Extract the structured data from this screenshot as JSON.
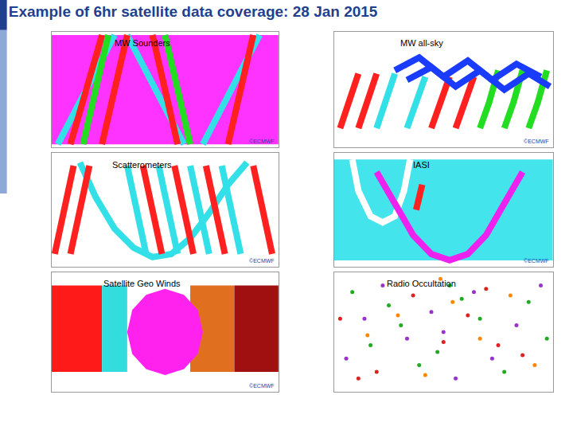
{
  "title": "Example of 6hr satellite data coverage: 28 Jan 2015",
  "chart_data": [
    {
      "type": "map",
      "title": "MW Sounders",
      "annotation": "©ECMWF",
      "xlim": [
        -180,
        180
      ],
      "ylim": [
        -90,
        90
      ],
      "tick_labels": false,
      "grid": false,
      "series": [
        {
          "type": "area",
          "color": "#ff33ff",
          "x": [
            -180,
            180,
            180,
            -180
          ],
          "values": [
            -85,
            -85,
            85,
            85
          ]
        },
        {
          "type": "line",
          "color": "#33e0e8",
          "x": [
            -170,
            -140,
            -110,
            -80
          ],
          "values": [
            -85,
            -30,
            30,
            85
          ]
        },
        {
          "type": "line",
          "color": "#33e0e8",
          "x": [
            -60,
            -30,
            0,
            30
          ],
          "values": [
            85,
            30,
            -30,
            -85
          ]
        },
        {
          "type": "line",
          "color": "#33e0e8",
          "x": [
            60,
            90,
            120,
            150
          ],
          "values": [
            -85,
            -30,
            30,
            85
          ]
        },
        {
          "type": "line",
          "color": "#ff2020",
          "x": [
            -150,
            -125,
            -100
          ],
          "values": [
            -85,
            0,
            85
          ]
        },
        {
          "type": "line",
          "color": "#ff2020",
          "x": [
            -100,
            -80,
            -60
          ],
          "values": [
            -85,
            0,
            85
          ]
        },
        {
          "type": "line",
          "color": "#ff2020",
          "x": [
            -20,
            0,
            20
          ],
          "values": [
            85,
            0,
            -85
          ]
        },
        {
          "type": "line",
          "color": "#ff2020",
          "x": [
            100,
            120,
            140
          ],
          "values": [
            -85,
            0,
            85
          ]
        },
        {
          "type": "line",
          "color": "#22dd22",
          "x": [
            -130,
            -110,
            -90
          ],
          "values": [
            -85,
            0,
            85
          ]
        },
        {
          "type": "line",
          "color": "#22dd22",
          "x": [
            0,
            20,
            40
          ],
          "values": [
            85,
            0,
            -85
          ]
        }
      ]
    },
    {
      "type": "map",
      "title": "MW all-sky",
      "annotation": "©ECMWF",
      "xlim": [
        -180,
        180
      ],
      "ylim": [
        -90,
        90
      ],
      "tick_labels": false,
      "grid": false,
      "series": [
        {
          "type": "line",
          "color": "#ff2020",
          "x": [
            -170,
            -155,
            -140
          ],
          "values": [
            -60,
            -20,
            25
          ]
        },
        {
          "type": "line",
          "color": "#ff2020",
          "x": [
            -140,
            -125,
            -110
          ],
          "values": [
            -60,
            -20,
            25
          ]
        },
        {
          "type": "line",
          "color": "#ff2020",
          "x": [
            -20,
            -5,
            10
          ],
          "values": [
            -60,
            -20,
            20
          ]
        },
        {
          "type": "line",
          "color": "#ff2020",
          "x": [
            20,
            35,
            50
          ],
          "values": [
            -60,
            -20,
            20
          ]
        },
        {
          "type": "line",
          "color": "#22dd22",
          "x": [
            60,
            75,
            90
          ],
          "values": [
            -60,
            -20,
            30
          ]
        },
        {
          "type": "line",
          "color": "#22dd22",
          "x": [
            100,
            115,
            130
          ],
          "values": [
            -60,
            -20,
            30
          ]
        },
        {
          "type": "line",
          "color": "#22dd22",
          "x": [
            140,
            155,
            170
          ],
          "values": [
            -60,
            -20,
            30
          ]
        },
        {
          "type": "line",
          "color": "#33e0e8",
          "x": [
            -110,
            -95,
            -80
          ],
          "values": [
            -60,
            -20,
            25
          ]
        },
        {
          "type": "line",
          "color": "#33e0e8",
          "x": [
            -60,
            -45,
            -30
          ],
          "values": [
            -60,
            -20,
            20
          ]
        },
        {
          "type": "line",
          "color": "#1a3cff",
          "x": [
            -80,
            -40,
            0,
            40,
            80,
            120,
            160
          ],
          "values": [
            30,
            50,
            20,
            45,
            15,
            40,
            20
          ]
        },
        {
          "type": "line",
          "color": "#1a3cff",
          "x": [
            -60,
            -20,
            20,
            60,
            100,
            140,
            175
          ],
          "values": [
            15,
            35,
            5,
            30,
            0,
            25,
            5
          ]
        }
      ]
    },
    {
      "type": "map",
      "title": "Scatterometers",
      "annotation": "©ECMWF",
      "xlim": [
        -180,
        180
      ],
      "ylim": [
        -90,
        90
      ],
      "tick_labels": false,
      "grid": false,
      "series": [
        {
          "type": "line",
          "color": "#33e0e8",
          "x": [
            -135,
            -110,
            -80,
            -50,
            -20,
            10,
            40,
            70,
            100,
            130
          ],
          "values": [
            75,
            20,
            -30,
            -60,
            -75,
            -70,
            -45,
            -5,
            40,
            75
          ]
        },
        {
          "type": "line",
          "color": "#ff2020",
          "x": [
            -175,
            -160,
            -145
          ],
          "values": [
            -70,
            0,
            70
          ]
        },
        {
          "type": "line",
          "color": "#ff2020",
          "x": [
            -150,
            -135,
            -120
          ],
          "values": [
            -70,
            0,
            70
          ]
        },
        {
          "type": "line",
          "color": "#33e0e8",
          "x": [
            -60,
            -45,
            -30
          ],
          "values": [
            70,
            0,
            -70
          ]
        },
        {
          "type": "line",
          "color": "#33e0e8",
          "x": [
            -10,
            5,
            20
          ],
          "values": [
            70,
            0,
            -70
          ]
        },
        {
          "type": "line",
          "color": "#33e0e8",
          "x": [
            40,
            55,
            70
          ],
          "values": [
            70,
            0,
            -70
          ]
        },
        {
          "type": "line",
          "color": "#33e0e8",
          "x": [
            90,
            105,
            120
          ],
          "values": [
            70,
            0,
            -70
          ]
        },
        {
          "type": "line",
          "color": "#ff2020",
          "x": [
            -35,
            -20,
            -5
          ],
          "values": [
            70,
            0,
            -70
          ]
        },
        {
          "type": "line",
          "color": "#ff2020",
          "x": [
            15,
            30,
            45
          ],
          "values": [
            70,
            0,
            -70
          ]
        },
        {
          "type": "line",
          "color": "#ff2020",
          "x": [
            65,
            80,
            95
          ],
          "values": [
            70,
            0,
            -70
          ]
        },
        {
          "type": "line",
          "color": "#ff2020",
          "x": [
            140,
            155,
            170
          ],
          "values": [
            70,
            0,
            -70
          ]
        }
      ]
    },
    {
      "type": "map",
      "title": "IASI",
      "annotation": "©ECMWF",
      "xlim": [
        -180,
        180
      ],
      "ylim": [
        -90,
        90
      ],
      "tick_labels": false,
      "grid": false,
      "series": [
        {
          "type": "area",
          "color": "#44e4ec",
          "x": [
            -180,
            180,
            180,
            -180
          ],
          "values": [
            -80,
            -80,
            80,
            80
          ]
        },
        {
          "type": "line",
          "color": "#ffffff",
          "x": [
            -150,
            -140,
            -120,
            -100,
            -80,
            -65,
            -55
          ],
          "values": [
            80,
            30,
            -10,
            -20,
            -10,
            30,
            80
          ]
        },
        {
          "type": "line",
          "color": "#ee22ee",
          "x": [
            -110,
            -80,
            -50,
            -20,
            10,
            40,
            70,
            100,
            130
          ],
          "values": [
            60,
            10,
            -40,
            -70,
            -80,
            -70,
            -40,
            10,
            60
          ]
        },
        {
          "type": "line",
          "color": "#ff2020",
          "x": [
            -45,
            -35
          ],
          "values": [
            0,
            40
          ]
        }
      ]
    },
    {
      "type": "map",
      "title": "Satellite Geo Winds",
      "annotation": "©ECMWF",
      "xlim": [
        -180,
        180
      ],
      "ylim": [
        -90,
        90
      ],
      "tick_labels": false,
      "grid": false,
      "series": [
        {
          "type": "area",
          "color": "#ff1a1a",
          "x": [
            -180,
            -100,
            -100,
            -180
          ],
          "values": [
            -60,
            -60,
            70,
            70
          ]
        },
        {
          "type": "area",
          "color": "#33dddd",
          "x": [
            -100,
            -60,
            -60,
            -100
          ],
          "values": [
            -60,
            -60,
            70,
            70
          ]
        },
        {
          "type": "area",
          "color": "#e07020",
          "x": [
            40,
            110,
            110,
            40
          ],
          "values": [
            -60,
            -60,
            70,
            70
          ]
        },
        {
          "type": "area",
          "color": "#a01010",
          "x": [
            110,
            180,
            180,
            110
          ],
          "values": [
            -60,
            -60,
            70,
            70
          ]
        },
        {
          "type": "area",
          "color": "#ff22ee",
          "x": [
            60,
            52,
            30,
            0,
            -30,
            -52,
            -60,
            -52,
            -30,
            0,
            30,
            52
          ],
          "values": [
            0,
            33,
            56,
            65,
            56,
            33,
            0,
            -33,
            -56,
            -65,
            -56,
            -33
          ]
        }
      ]
    },
    {
      "type": "map",
      "title": "Radio Occultation",
      "xlim": [
        -180,
        180
      ],
      "ylim": [
        -90,
        90
      ],
      "tick_labels": false,
      "grid": false,
      "series": [
        {
          "type": "scatter",
          "color": "#22aa22",
          "x": [
            -150,
            -120,
            -90,
            -40,
            10,
            60,
            100,
            140,
            170,
            -10,
            30,
            -70
          ],
          "values": [
            60,
            -20,
            40,
            -50,
            70,
            20,
            -60,
            45,
            -10,
            -30,
            50,
            10
          ]
        },
        {
          "type": "scatter",
          "color": "#9933cc",
          "x": [
            -160,
            -100,
            -60,
            -20,
            20,
            80,
            120,
            160,
            -130,
            50,
            0
          ],
          "values": [
            -40,
            70,
            -10,
            30,
            -70,
            -40,
            10,
            70,
            20,
            60,
            0
          ]
        },
        {
          "type": "scatter",
          "color": "#dd2222",
          "x": [
            -170,
            -110,
            -50,
            0,
            40,
            90,
            130,
            -140,
            70
          ],
          "values": [
            20,
            -60,
            55,
            -15,
            25,
            -20,
            -35,
            -70,
            65
          ]
        },
        {
          "type": "scatter",
          "color": "#ff8800",
          "x": [
            -125,
            -75,
            -30,
            15,
            60,
            110,
            150,
            -5
          ],
          "values": [
            -5,
            25,
            -65,
            45,
            -10,
            55,
            -50,
            80
          ]
        }
      ]
    }
  ]
}
